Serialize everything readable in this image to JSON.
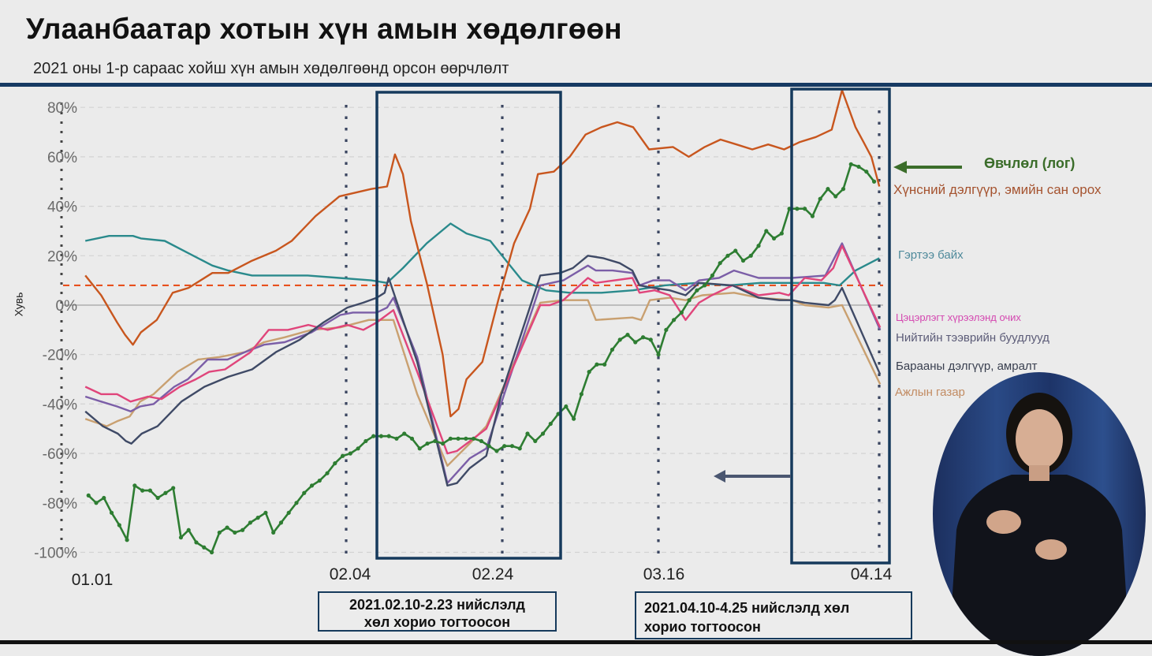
{
  "header": {
    "title": "Улаанбаатар хотын хүн амын хөдөлгөөн",
    "subtitle": "2021 оны 1-р сараас хойш хүн амын хөдөлгөөнд орсон өөрчлөлт"
  },
  "annotations": {
    "green_arrow_label": "Өвчлөл (лог)",
    "lockdown_1": "2021.02.10-2.23 нийслэлд хөл хорио тогтоосон",
    "lockdown_1_line1": "2021.02.10-2.23 нийслэлд",
    "lockdown_1_line2": "хөл хорио тогтоосон",
    "lockdown_2_line1": "2021.04.10-4.25 нийслэлд хөл",
    "lockdown_2_line2": "хорио тогтоосон"
  },
  "colors": {
    "accent_bar": "#163a63",
    "box_border": "#163a5c",
    "reference_line": "#e8501e"
  },
  "chart_data": {
    "type": "line",
    "title": "",
    "xlabel": "",
    "ylabel": "Хувь",
    "x_unit": "days since 01.01 (2021)",
    "xlim": [
      0,
      103
    ],
    "ylim": [
      -100,
      80
    ],
    "x_ticks": [
      {
        "day": 0,
        "label": "01.01"
      },
      {
        "day": 34,
        "label": "02.04"
      },
      {
        "day": 54,
        "label": "02.24"
      },
      {
        "day": 74,
        "label": "03.16"
      },
      {
        "day": 103,
        "label": "04.14"
      }
    ],
    "y_ticks": [
      {
        "value": 80,
        "label": "80%"
      },
      {
        "value": 60,
        "label": "60%"
      },
      {
        "value": 40,
        "label": "40%"
      },
      {
        "value": 20,
        "label": "20%"
      },
      {
        "value": 0,
        "label": "0%"
      },
      {
        "value": -20,
        "label": "-20%"
      },
      {
        "value": -40,
        "label": "-40%"
      },
      {
        "value": -60,
        "label": "-60%"
      },
      {
        "value": -80,
        "label": "-80%"
      },
      {
        "value": -100,
        "label": "-100%"
      }
    ],
    "grid": true,
    "reference_line_value": 8,
    "highlight_periods": [
      {
        "from": "02.10",
        "to": "02.23"
      },
      {
        "from": "04.10",
        "to": "04.25"
      }
    ],
    "series": [
      {
        "name": "Хүнсний дэлгүүр, эмийн сан орох",
        "color": "#c8561e",
        "points": [
          [
            3,
            12
          ],
          [
            5,
            4
          ],
          [
            7,
            -7
          ],
          [
            8,
            -12
          ],
          [
            9,
            -16
          ],
          [
            10,
            -11
          ],
          [
            12,
            -6
          ],
          [
            14,
            5
          ],
          [
            16,
            7
          ],
          [
            19,
            13
          ],
          [
            21,
            13
          ],
          [
            24,
            18
          ],
          [
            27,
            22
          ],
          [
            29,
            26
          ],
          [
            32,
            36
          ],
          [
            35,
            44
          ],
          [
            39,
            47
          ],
          [
            41,
            48
          ],
          [
            42,
            61
          ],
          [
            43,
            53
          ],
          [
            44,
            34
          ],
          [
            46,
            9
          ],
          [
            48,
            -20
          ],
          [
            49,
            -45
          ],
          [
            50,
            -42
          ],
          [
            51,
            -30
          ],
          [
            53,
            -23
          ],
          [
            55,
            2
          ],
          [
            57,
            25
          ],
          [
            59,
            39
          ],
          [
            60,
            53
          ],
          [
            62,
            54
          ],
          [
            64,
            60
          ],
          [
            66,
            69
          ],
          [
            68,
            72
          ],
          [
            70,
            74
          ],
          [
            72,
            72
          ],
          [
            74,
            63
          ],
          [
            77,
            64
          ],
          [
            79,
            60
          ],
          [
            81,
            64
          ],
          [
            83,
            67
          ],
          [
            85,
            65
          ],
          [
            87,
            63
          ],
          [
            89,
            65
          ],
          [
            91,
            63
          ],
          [
            93,
            66
          ],
          [
            95,
            68
          ],
          [
            97,
            71
          ],
          [
            98.3,
            87
          ],
          [
            100,
            72
          ],
          [
            101,
            66
          ],
          [
            102,
            60
          ],
          [
            103,
            48
          ]
        ]
      },
      {
        "name": "Гэртээ байх",
        "color": "#2a8a8c",
        "points": [
          [
            3,
            26
          ],
          [
            6,
            28
          ],
          [
            9,
            28
          ],
          [
            10,
            27
          ],
          [
            13,
            26
          ],
          [
            16,
            21
          ],
          [
            19,
            16
          ],
          [
            21,
            14
          ],
          [
            24,
            12
          ],
          [
            27,
            12
          ],
          [
            31,
            12
          ],
          [
            35,
            11
          ],
          [
            39,
            10
          ],
          [
            41,
            9
          ],
          [
            43,
            15
          ],
          [
            46,
            25
          ],
          [
            49,
            33
          ],
          [
            51,
            29
          ],
          [
            54,
            26
          ],
          [
            56,
            18
          ],
          [
            58,
            10
          ],
          [
            61,
            6
          ],
          [
            64,
            5
          ],
          [
            68,
            5
          ],
          [
            72,
            6
          ],
          [
            76,
            8
          ],
          [
            80,
            9
          ],
          [
            84,
            8
          ],
          [
            88,
            9
          ],
          [
            92,
            9
          ],
          [
            96,
            9
          ],
          [
            98,
            8
          ],
          [
            100,
            14
          ],
          [
            103,
            19
          ]
        ]
      },
      {
        "name": "Цэцэрлэгт хүрээлэнд очих",
        "color": "#e0457b",
        "points": [
          [
            3,
            -33
          ],
          [
            5,
            -36
          ],
          [
            7,
            -36
          ],
          [
            8.7,
            -39
          ],
          [
            10.9,
            -37
          ],
          [
            12.6,
            -38
          ],
          [
            14.9,
            -33
          ],
          [
            16.9,
            -30
          ],
          [
            18.6,
            -27
          ],
          [
            20.6,
            -26
          ],
          [
            23.8,
            -19
          ],
          [
            26.1,
            -10
          ],
          [
            28.5,
            -10
          ],
          [
            31.1,
            -8
          ],
          [
            33.5,
            -10
          ],
          [
            36,
            -8
          ],
          [
            38,
            -10
          ],
          [
            39.7,
            -7
          ],
          [
            41.8,
            -2
          ],
          [
            44.8,
            -27
          ],
          [
            48.6,
            -60
          ],
          [
            49.8,
            -59
          ],
          [
            53.5,
            -50
          ],
          [
            60.3,
            0
          ],
          [
            61.5,
            0
          ],
          [
            63.2,
            2
          ],
          [
            66.3,
            11
          ],
          [
            67.3,
            9
          ],
          [
            71.9,
            11
          ],
          [
            72.8,
            5
          ],
          [
            74.7,
            6
          ],
          [
            76.6,
            4
          ],
          [
            78.6,
            -6
          ],
          [
            80.3,
            1
          ],
          [
            81.9,
            4
          ],
          [
            84.5,
            8
          ],
          [
            87.8,
            4
          ],
          [
            90.4,
            5
          ],
          [
            91.6,
            4
          ],
          [
            93.6,
            11
          ],
          [
            95.7,
            10
          ],
          [
            97.2,
            15
          ],
          [
            98.3,
            24
          ],
          [
            103.1,
            -9
          ]
        ]
      },
      {
        "name": "Нийтийн тээврийн буудлууд",
        "color": "#7b5ea7",
        "points": [
          [
            3,
            -37
          ],
          [
            5,
            -39
          ],
          [
            7,
            -41
          ],
          [
            8.7,
            -43
          ],
          [
            9.9,
            -41
          ],
          [
            11.6,
            -40
          ],
          [
            14.2,
            -33
          ],
          [
            15.9,
            -30
          ],
          [
            18.4,
            -22
          ],
          [
            20.9,
            -22
          ],
          [
            23.1,
            -19
          ],
          [
            25.5,
            -16
          ],
          [
            28.1,
            -15
          ],
          [
            31.5,
            -11
          ],
          [
            35.1,
            -4
          ],
          [
            36.7,
            -3
          ],
          [
            39.7,
            -3
          ],
          [
            41,
            -1
          ],
          [
            41.8,
            3
          ],
          [
            44.8,
            -21
          ],
          [
            48.6,
            -72
          ],
          [
            51.4,
            -62
          ],
          [
            53.5,
            -58
          ],
          [
            60.3,
            8
          ],
          [
            63.2,
            10
          ],
          [
            66.3,
            16
          ],
          [
            67.3,
            14
          ],
          [
            69.4,
            14
          ],
          [
            71.9,
            13
          ],
          [
            72.8,
            8
          ],
          [
            74.5,
            10
          ],
          [
            76.6,
            10
          ],
          [
            78.6,
            6
          ],
          [
            80.3,
            10
          ],
          [
            82.8,
            11
          ],
          [
            84.7,
            14
          ],
          [
            87.8,
            11
          ],
          [
            89.5,
            11
          ],
          [
            92,
            11
          ],
          [
            96.2,
            12
          ],
          [
            98.3,
            25
          ],
          [
            103.1,
            -10
          ]
        ]
      },
      {
        "name": "Барааны дэлгүүр, амралт",
        "color": "#3f4a66",
        "points": [
          [
            3,
            -43
          ],
          [
            5.2,
            -49
          ],
          [
            7.1,
            -52
          ],
          [
            8.1,
            -55
          ],
          [
            8.8,
            -56
          ],
          [
            10.1,
            -52
          ],
          [
            12.1,
            -49
          ],
          [
            15.1,
            -39
          ],
          [
            18,
            -33
          ],
          [
            21,
            -29
          ],
          [
            24,
            -26
          ],
          [
            27,
            -19
          ],
          [
            30,
            -14
          ],
          [
            33,
            -7
          ],
          [
            36,
            -1
          ],
          [
            38,
            1
          ],
          [
            39.7,
            3
          ],
          [
            40.7,
            5
          ],
          [
            41.2,
            11
          ],
          [
            44.8,
            -23
          ],
          [
            48.6,
            -73
          ],
          [
            49.8,
            -72
          ],
          [
            51.4,
            -66
          ],
          [
            53.5,
            -61
          ],
          [
            55.4,
            -36
          ],
          [
            60.3,
            12
          ],
          [
            62.8,
            13
          ],
          [
            64.4,
            15
          ],
          [
            66.3,
            20
          ],
          [
            68.2,
            19
          ],
          [
            70.3,
            17
          ],
          [
            71.9,
            14
          ],
          [
            72.8,
            8
          ],
          [
            74.5,
            7
          ],
          [
            76.6,
            6
          ],
          [
            78.6,
            4
          ],
          [
            80.3,
            9
          ],
          [
            84.5,
            8
          ],
          [
            87.8,
            3
          ],
          [
            90.4,
            2
          ],
          [
            92,
            2
          ],
          [
            93.6,
            1
          ],
          [
            96.6,
            0
          ],
          [
            97.4,
            2
          ],
          [
            98.3,
            7
          ],
          [
            103.1,
            -28
          ]
        ]
      },
      {
        "name": "Ажлын газар",
        "color": "#c9a070",
        "points": [
          [
            3,
            -46
          ],
          [
            5.7,
            -49
          ],
          [
            7,
            -47
          ],
          [
            8.6,
            -45
          ],
          [
            9.9,
            -39
          ],
          [
            11.6,
            -36
          ],
          [
            14.6,
            -27
          ],
          [
            17.2,
            -22
          ],
          [
            19.9,
            -21
          ],
          [
            23.1,
            -19
          ],
          [
            25.5,
            -15
          ],
          [
            28.1,
            -13
          ],
          [
            31.5,
            -10
          ],
          [
            35.1,
            -9
          ],
          [
            38.7,
            -6
          ],
          [
            41.4,
            -6
          ],
          [
            41.8,
            -6
          ],
          [
            44.8,
            -36
          ],
          [
            48.6,
            -65
          ],
          [
            51.4,
            -56
          ],
          [
            53.5,
            -49
          ],
          [
            60.3,
            1
          ],
          [
            63.2,
            2
          ],
          [
            64.4,
            2
          ],
          [
            66.3,
            2
          ],
          [
            67.3,
            -6
          ],
          [
            71.9,
            -5
          ],
          [
            73,
            -6
          ],
          [
            74.1,
            2
          ],
          [
            76.6,
            3
          ],
          [
            78.6,
            2
          ],
          [
            80.7,
            4
          ],
          [
            84.7,
            5
          ],
          [
            87.8,
            3
          ],
          [
            92,
            2
          ],
          [
            93.6,
            0
          ],
          [
            96.6,
            -1
          ],
          [
            98.3,
            0
          ],
          [
            103.1,
            -32
          ]
        ]
      },
      {
        "name": "Өвчлөл (лог)",
        "color": "#2e7d32",
        "markers": true,
        "start_day": 3.4,
        "step_days": 0.97,
        "values": [
          -77,
          -80,
          -78,
          -84,
          -89,
          -95,
          -73,
          -75,
          -75,
          -78,
          -76,
          -74,
          -94,
          -91,
          -96,
          -98,
          -100,
          -92,
          -90,
          -92,
          -91,
          -88,
          -86,
          -84,
          -92,
          -88,
          -84,
          -80,
          -76,
          -73,
          -71,
          -68,
          -64,
          -61,
          -60,
          -58,
          -55,
          -53,
          -53,
          -53,
          -54,
          -52,
          -54,
          -58,
          -56,
          -55,
          -56,
          -54,
          -54,
          -54,
          -54,
          -55,
          -57,
          -59,
          -57,
          -57,
          -58,
          -52,
          -55,
          -52,
          -48,
          -44,
          -41,
          -46,
          -36,
          -27,
          -24,
          -24,
          -18,
          -14,
          -12,
          -15,
          -13,
          -14,
          -20,
          -10,
          -6,
          -3,
          2,
          6,
          8,
          12,
          17,
          20,
          22,
          18,
          20,
          24,
          30,
          27,
          29,
          39,
          39,
          39,
          36,
          43,
          47,
          44,
          47,
          57,
          56,
          54,
          50
        ]
      }
    ],
    "legend": [
      {
        "label": "Хүнсний дэлгүүр, эмийн сан орох",
        "color": "#a5532f"
      },
      {
        "label": "Гэртээ байх",
        "color": "#4f8a9b"
      },
      {
        "label": "Цэцэрлэгт хүрээлэнд очих",
        "color": "#d447b0"
      },
      {
        "label": "Нийтийн тээврийн буудлууд",
        "color": "#5c5c78"
      },
      {
        "label": "Барааны дэлгүүр, амралт",
        "color": "#3a4050"
      },
      {
        "label": "Ажлын газар",
        "color": "#c28b62"
      }
    ],
    "legend_placement": "right"
  }
}
